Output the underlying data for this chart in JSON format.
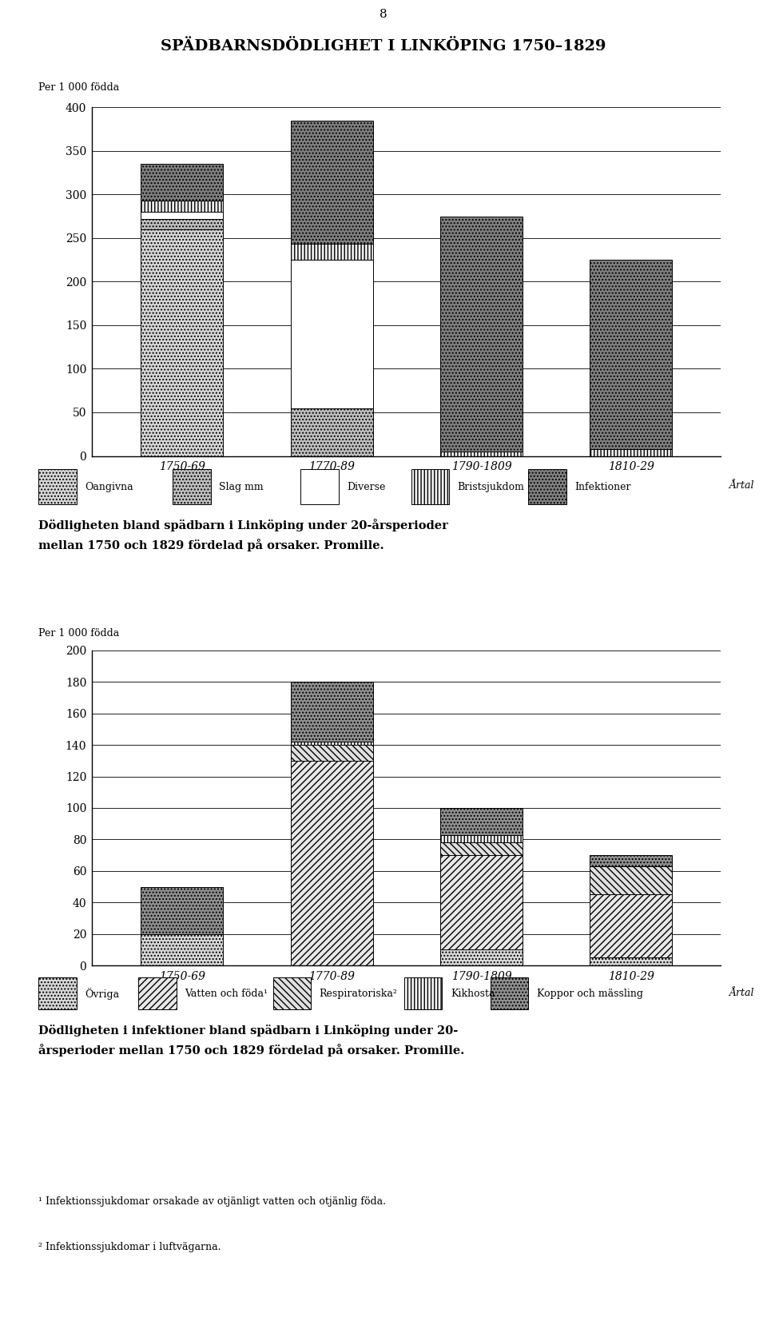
{
  "page_number": "8",
  "title1": "SPÄDBARNSDÖDLIGHET I LINKÖPING 1750–1829",
  "ylabel_text": "Per 1 000 födda",
  "artal": "Årtal",
  "periods": [
    "1750-69",
    "1770-89",
    "1790-1809",
    "1810-29"
  ],
  "chart1": {
    "ylim_max": 400,
    "yticks": [
      0,
      50,
      100,
      150,
      200,
      250,
      300,
      350,
      400
    ],
    "categories": [
      "Oangivna",
      "Slag mm",
      "Diverse",
      "Bristsjukdom",
      "Infektioner"
    ],
    "data": [
      [
        260,
        0,
        0,
        0
      ],
      [
        12,
        55,
        0,
        0
      ],
      [
        8,
        170,
        0,
        0
      ],
      [
        13,
        18,
        5,
        8
      ],
      [
        42,
        142,
        270,
        217
      ]
    ],
    "face_colors": [
      "#d8d8d8",
      "#c0c0c0",
      "#ffffff",
      "#f0f0f0",
      "#808080"
    ],
    "hatches": [
      "....",
      "....",
      "",
      "||||",
      "...."
    ],
    "caption": "Dödligheten bland spädbarn i Linköping under 20-årsperioder\nmellan 1750 och 1829 fördelad på orsaker. Promille."
  },
  "chart2": {
    "ylim_max": 200,
    "yticks": [
      0,
      20,
      40,
      60,
      80,
      100,
      120,
      140,
      160,
      180,
      200
    ],
    "categories": [
      "Övriga",
      "Vatten och föda¹",
      "Respiratoriska²",
      "Kikhosta",
      "Koppor och mässling"
    ],
    "data": [
      [
        20,
        0,
        10,
        5
      ],
      [
        0,
        130,
        60,
        40
      ],
      [
        0,
        10,
        8,
        18
      ],
      [
        0,
        2,
        5,
        0
      ],
      [
        30,
        38,
        17,
        7
      ]
    ],
    "face_colors": [
      "#d8d8d8",
      "#e8e8e8",
      "#e0e0e0",
      "#f5f5f5",
      "#909090"
    ],
    "hatches": [
      "....",
      "////",
      "\\\\\\\\",
      "||||",
      "...."
    ],
    "caption": "Dödligheten i infektioner bland spädbarn i Linköping under 20-\nårsperioder mellan 1750 och 1829 fördelad på orsaker. Promille.",
    "footnote1": "¹ Infektionssjukdomar orsakade av otjänligt vatten och otjänlig föda.",
    "footnote2": "² Infektionssjukdomar i luftvägarna."
  }
}
